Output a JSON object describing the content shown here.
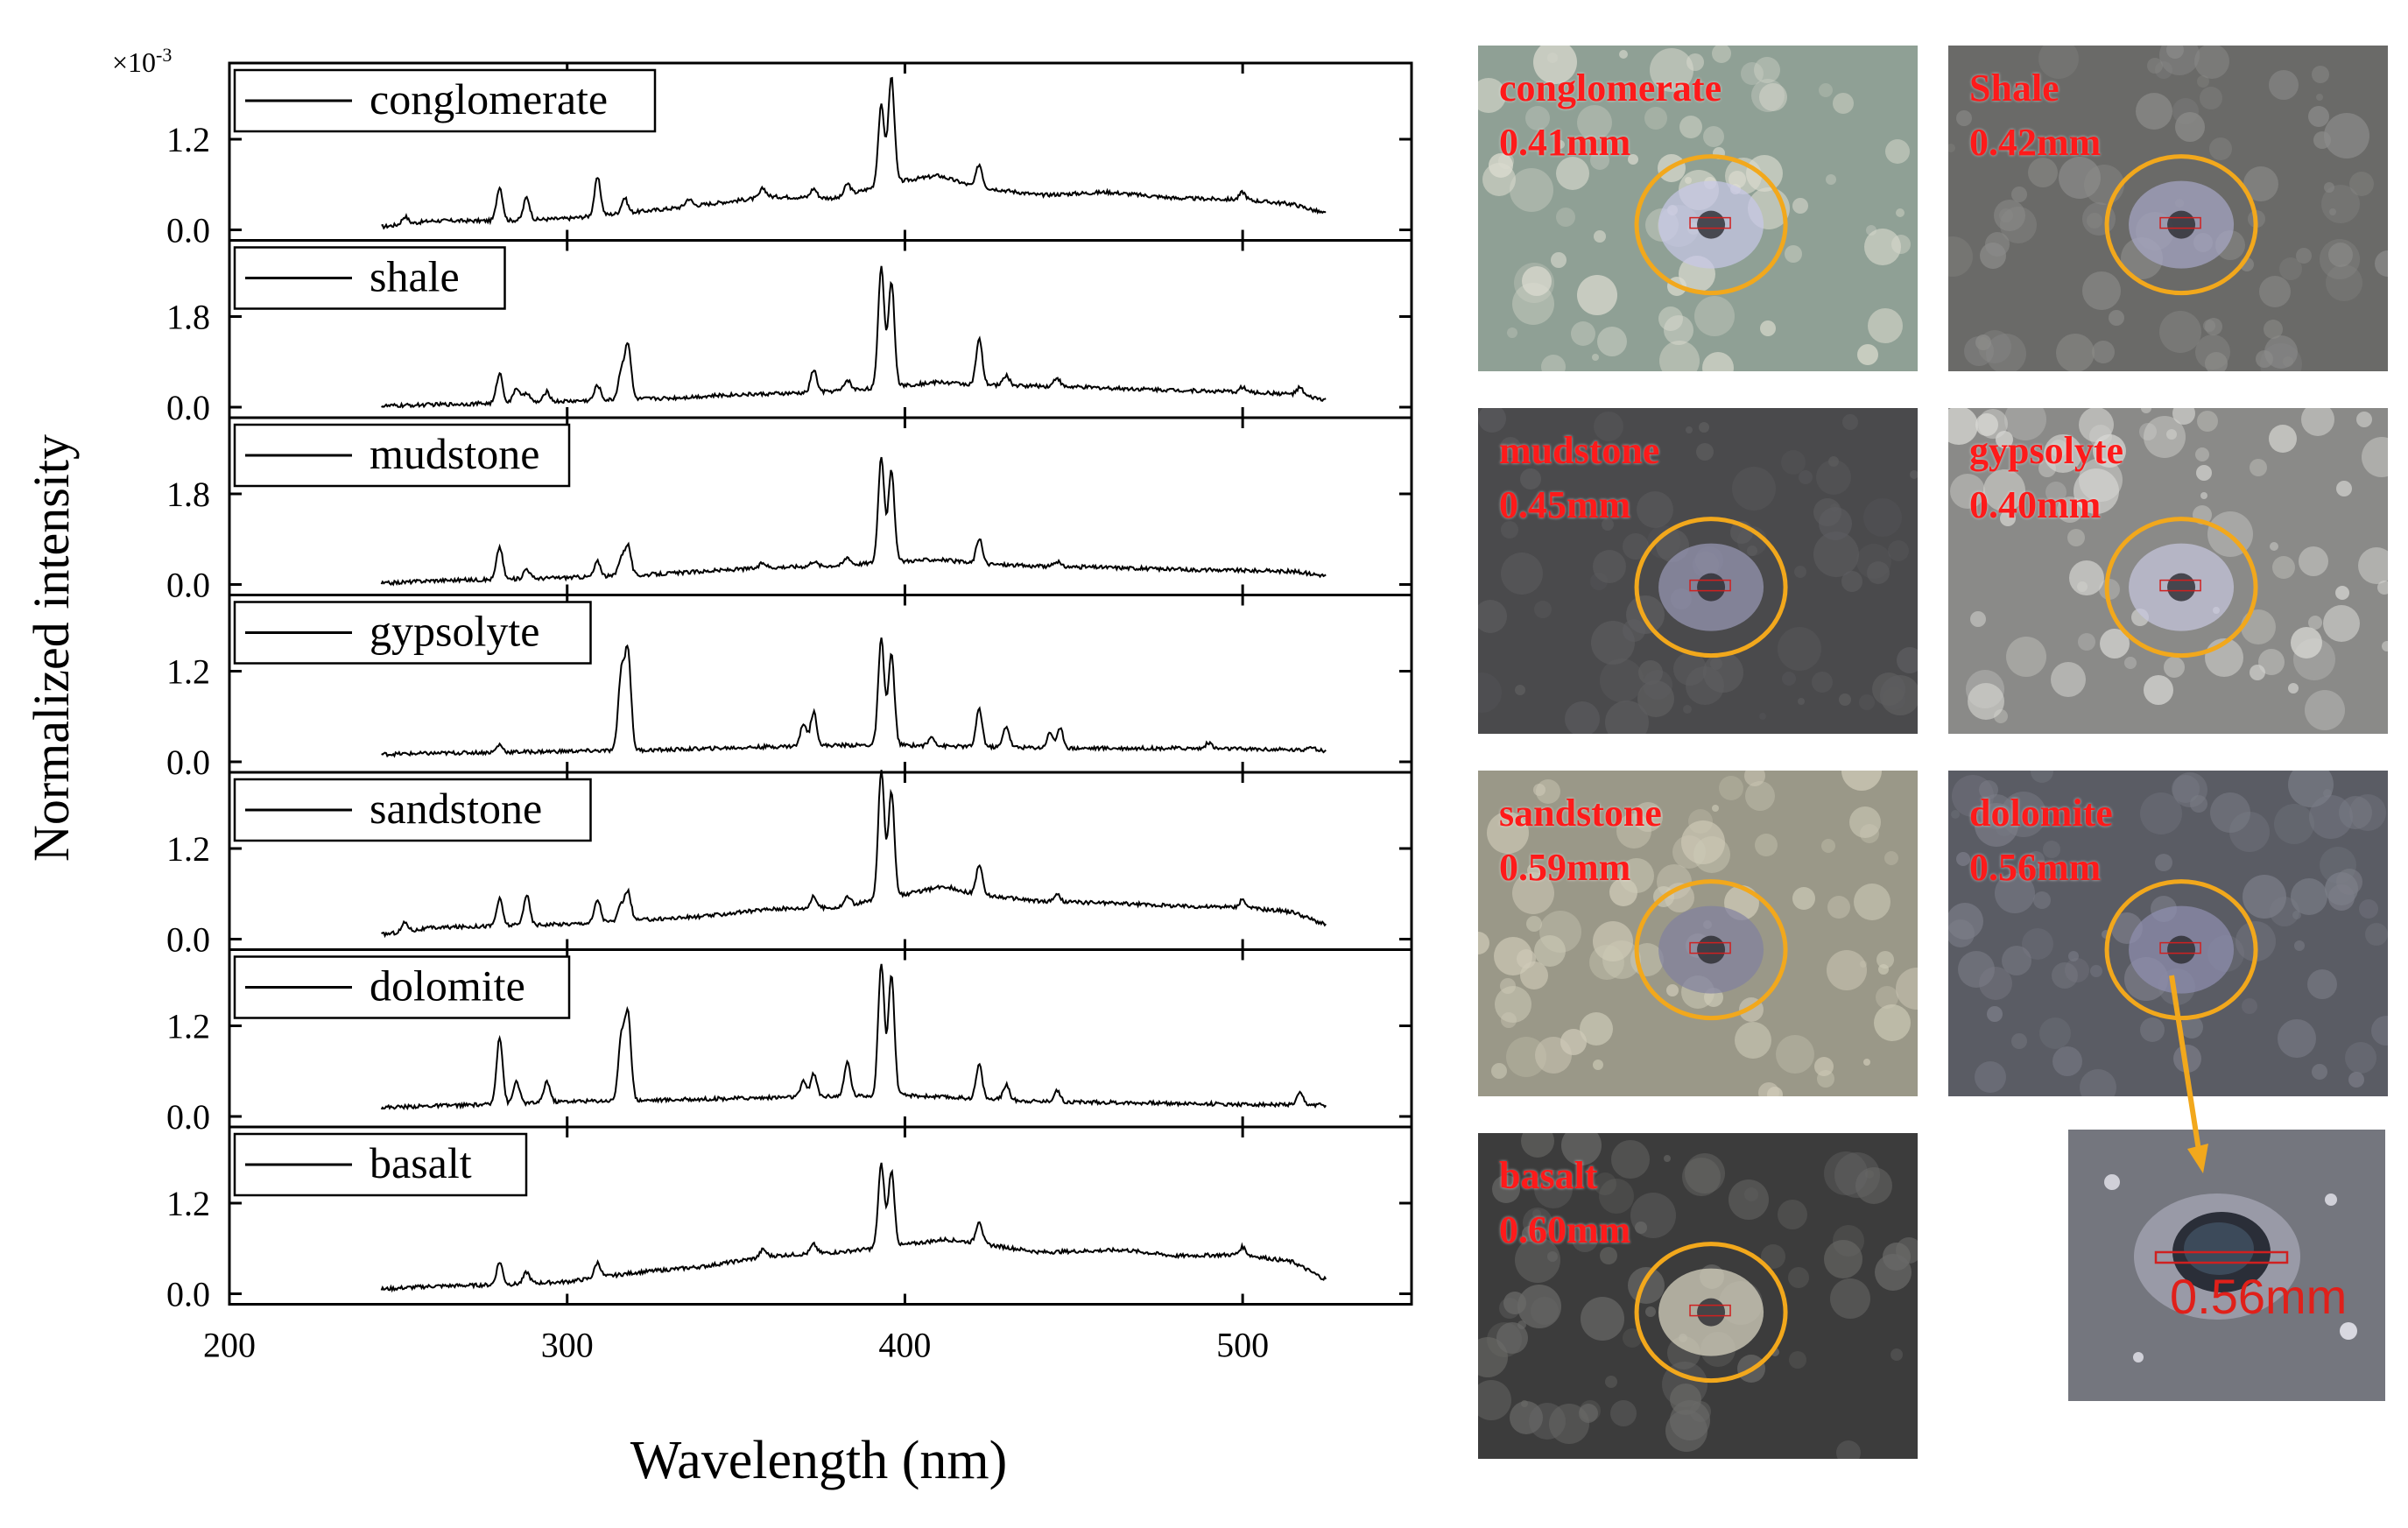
{
  "chart_data": {
    "type": "line",
    "xlabel": "Wavelength (nm)",
    "ylabel": "Normalized intensity",
    "multiplier": "×10",
    "multiplier_exp": "-3",
    "xlim": [
      200,
      550
    ],
    "xticks": [
      "200",
      "300",
      "400",
      "500"
    ],
    "xtick_values": [
      200,
      300,
      400,
      500
    ],
    "x_range": [
      245,
      525
    ],
    "series": [
      {
        "name": "conglomerate",
        "ylim": [
          0,
          2.0
        ],
        "yticks": [
          "0.0",
          "1.2"
        ],
        "ytick_values": [
          0,
          1.2
        ],
        "baseline": [
          [
            245,
            0.04
          ],
          [
            260,
            0.12
          ],
          [
            280,
            0.12
          ],
          [
            300,
            0.15
          ],
          [
            330,
            0.28
          ],
          [
            360,
            0.44
          ],
          [
            380,
            0.42
          ],
          [
            395,
            0.62
          ],
          [
            410,
            0.72
          ],
          [
            420,
            0.58
          ],
          [
            440,
            0.46
          ],
          [
            460,
            0.5
          ],
          [
            480,
            0.42
          ],
          [
            500,
            0.4
          ],
          [
            515,
            0.34
          ],
          [
            524,
            0.22
          ]
        ],
        "peaks": [
          [
            252,
            0.1
          ],
          [
            280,
            0.45
          ],
          [
            288,
            0.3
          ],
          [
            309,
            0.5
          ],
          [
            317,
            0.2
          ],
          [
            336,
            0.1
          ],
          [
            358,
            0.12
          ],
          [
            373,
            0.12
          ],
          [
            383,
            0.15
          ],
          [
            393,
            1.05
          ],
          [
            396,
            1.4
          ],
          [
            422,
            0.3
          ],
          [
            500,
            0.1
          ]
        ]
      },
      {
        "name": "shale",
        "ylim": [
          0,
          3.0
        ],
        "yticks": [
          "0.0",
          "1.8"
        ],
        "ytick_values": [
          0,
          1.8
        ],
        "baseline": [
          [
            245,
            0.02
          ],
          [
            260,
            0.05
          ],
          [
            280,
            0.08
          ],
          [
            300,
            0.12
          ],
          [
            315,
            0.15
          ],
          [
            330,
            0.18
          ],
          [
            350,
            0.25
          ],
          [
            370,
            0.28
          ],
          [
            385,
            0.35
          ],
          [
            395,
            0.4
          ],
          [
            410,
            0.5
          ],
          [
            420,
            0.45
          ],
          [
            440,
            0.42
          ],
          [
            460,
            0.38
          ],
          [
            480,
            0.34
          ],
          [
            500,
            0.3
          ],
          [
            515,
            0.26
          ],
          [
            524,
            0.15
          ]
        ],
        "peaks": [
          [
            280,
            0.6
          ],
          [
            285,
            0.3
          ],
          [
            288,
            0.2
          ],
          [
            294,
            0.2
          ],
          [
            309,
            0.3
          ],
          [
            316,
            0.55
          ],
          [
            318,
            1.1
          ],
          [
            373,
            0.45
          ],
          [
            383,
            0.2
          ],
          [
            393,
            2.4
          ],
          [
            396,
            2.1
          ],
          [
            422,
            0.9
          ],
          [
            430,
            0.2
          ],
          [
            445,
            0.18
          ],
          [
            500,
            0.1
          ],
          [
            517,
            0.15
          ]
        ]
      },
      {
        "name": "mudstone",
        "ylim": [
          0,
          3.0
        ],
        "yticks": [
          "0.0",
          "1.8"
        ],
        "ytick_values": [
          0,
          1.8
        ],
        "baseline": [
          [
            245,
            0.02
          ],
          [
            260,
            0.08
          ],
          [
            280,
            0.1
          ],
          [
            300,
            0.14
          ],
          [
            320,
            0.18
          ],
          [
            340,
            0.26
          ],
          [
            360,
            0.34
          ],
          [
            380,
            0.38
          ],
          [
            395,
            0.45
          ],
          [
            410,
            0.5
          ],
          [
            420,
            0.42
          ],
          [
            440,
            0.36
          ],
          [
            460,
            0.34
          ],
          [
            480,
            0.3
          ],
          [
            500,
            0.28
          ],
          [
            515,
            0.26
          ],
          [
            524,
            0.18
          ]
        ],
        "peaks": [
          [
            280,
            0.65
          ],
          [
            288,
            0.2
          ],
          [
            309,
            0.3
          ],
          [
            316,
            0.35
          ],
          [
            318,
            0.6
          ],
          [
            358,
            0.1
          ],
          [
            373,
            0.1
          ],
          [
            383,
            0.15
          ],
          [
            393,
            2.1
          ],
          [
            396,
            1.8
          ],
          [
            422,
            0.5
          ],
          [
            445,
            0.1
          ]
        ]
      },
      {
        "name": "gypsolyte",
        "ylim": [
          0,
          2.0
        ],
        "yticks": [
          "0.0",
          "1.2"
        ],
        "ytick_values": [
          0,
          1.2
        ],
        "baseline": [
          [
            245,
            0.1
          ],
          [
            270,
            0.12
          ],
          [
            300,
            0.14
          ],
          [
            330,
            0.16
          ],
          [
            360,
            0.2
          ],
          [
            380,
            0.22
          ],
          [
            400,
            0.22
          ],
          [
            420,
            0.2
          ],
          [
            450,
            0.18
          ],
          [
            480,
            0.18
          ],
          [
            500,
            0.17
          ],
          [
            524,
            0.15
          ]
        ],
        "peaks": [
          [
            280,
            0.1
          ],
          [
            316,
            1.0
          ],
          [
            318,
            1.3
          ],
          [
            370,
            0.3
          ],
          [
            373,
            0.45
          ],
          [
            393,
            1.4
          ],
          [
            396,
            1.2
          ],
          [
            408,
            0.12
          ],
          [
            422,
            0.5
          ],
          [
            430,
            0.28
          ],
          [
            443,
            0.2
          ],
          [
            446,
            0.25
          ],
          [
            490,
            0.08
          ],
          [
            520,
            0.06
          ]
        ]
      },
      {
        "name": "sandstone",
        "ylim": [
          0,
          2.0
        ],
        "yticks": [
          "0.0",
          "1.2"
        ],
        "ytick_values": [
          0,
          1.2
        ],
        "baseline": [
          [
            245,
            0.06
          ],
          [
            260,
            0.15
          ],
          [
            280,
            0.18
          ],
          [
            300,
            0.2
          ],
          [
            320,
            0.25
          ],
          [
            340,
            0.3
          ],
          [
            360,
            0.4
          ],
          [
            380,
            0.42
          ],
          [
            395,
            0.55
          ],
          [
            412,
            0.7
          ],
          [
            420,
            0.6
          ],
          [
            440,
            0.5
          ],
          [
            460,
            0.48
          ],
          [
            480,
            0.44
          ],
          [
            500,
            0.42
          ],
          [
            515,
            0.36
          ],
          [
            524,
            0.2
          ]
        ],
        "peaks": [
          [
            252,
            0.12
          ],
          [
            280,
            0.35
          ],
          [
            288,
            0.4
          ],
          [
            309,
            0.3
          ],
          [
            316,
            0.2
          ],
          [
            318,
            0.38
          ],
          [
            373,
            0.15
          ],
          [
            383,
            0.12
          ],
          [
            393,
            1.7
          ],
          [
            396,
            1.4
          ],
          [
            422,
            0.4
          ],
          [
            445,
            0.1
          ],
          [
            500,
            0.1
          ]
        ]
      },
      {
        "name": "dolomite",
        "ylim": [
          0,
          2.0
        ],
        "yticks": [
          "0.0",
          "1.2"
        ],
        "ytick_values": [
          0,
          1.2
        ],
        "baseline": [
          [
            245,
            0.12
          ],
          [
            260,
            0.14
          ],
          [
            280,
            0.16
          ],
          [
            300,
            0.2
          ],
          [
            330,
            0.22
          ],
          [
            360,
            0.25
          ],
          [
            380,
            0.27
          ],
          [
            400,
            0.28
          ],
          [
            420,
            0.24
          ],
          [
            440,
            0.2
          ],
          [
            470,
            0.18
          ],
          [
            500,
            0.16
          ],
          [
            524,
            0.15
          ]
        ],
        "peaks": [
          [
            280,
            0.9
          ],
          [
            285,
            0.3
          ],
          [
            294,
            0.28
          ],
          [
            316,
            0.8
          ],
          [
            318,
            1.15
          ],
          [
            370,
            0.2
          ],
          [
            373,
            0.3
          ],
          [
            383,
            0.45
          ],
          [
            393,
            1.75
          ],
          [
            396,
            1.6
          ],
          [
            422,
            0.45
          ],
          [
            430,
            0.2
          ],
          [
            445,
            0.15
          ],
          [
            517,
            0.15
          ]
        ]
      },
      {
        "name": "basalt",
        "ylim": [
          0,
          2.0
        ],
        "yticks": [
          "0.0",
          "1.2"
        ],
        "ytick_values": [
          0,
          1.2
        ],
        "baseline": [
          [
            245,
            0.06
          ],
          [
            260,
            0.1
          ],
          [
            280,
            0.12
          ],
          [
            300,
            0.16
          ],
          [
            320,
            0.28
          ],
          [
            340,
            0.36
          ],
          [
            360,
            0.5
          ],
          [
            380,
            0.55
          ],
          [
            395,
            0.62
          ],
          [
            412,
            0.72
          ],
          [
            420,
            0.68
          ],
          [
            440,
            0.55
          ],
          [
            465,
            0.58
          ],
          [
            480,
            0.5
          ],
          [
            500,
            0.52
          ],
          [
            515,
            0.42
          ],
          [
            524,
            0.2
          ]
        ],
        "peaks": [
          [
            280,
            0.3
          ],
          [
            288,
            0.15
          ],
          [
            309,
            0.2
          ],
          [
            358,
            0.1
          ],
          [
            373,
            0.12
          ],
          [
            393,
            1.1
          ],
          [
            396,
            1.0
          ],
          [
            422,
            0.3
          ],
          [
            500,
            0.1
          ]
        ]
      }
    ]
  },
  "photos": [
    {
      "name": "conglomerate",
      "line1": "conglomerate",
      "line2": "0.41mm",
      "bg": "#8fa095",
      "spot": "#c8c8e8",
      "tex": "#dcdcd0"
    },
    {
      "name": "shale",
      "line1": "Shale",
      "line2": "0.42mm",
      "bg": "#6a6a68",
      "spot": "#a8a8c8",
      "tex": "#8c8c8a"
    },
    {
      "name": "mudstone",
      "line1": "mudstone",
      "line2": "0.45mm",
      "bg": "#4a4a4c",
      "spot": "#9a9ab8",
      "tex": "#5e5e60"
    },
    {
      "name": "gypsolyte",
      "line1": "gypsolyte",
      "line2": "0.40mm",
      "bg": "#8a8a88",
      "spot": "#c8c8e0",
      "tex": "#d8d8d4"
    },
    {
      "name": "sandstone",
      "line1": "sandstone",
      "line2": "0.59mm",
      "bg": "#9a9888",
      "spot": "#8080a0",
      "tex": "#cfcbb8"
    },
    {
      "name": "dolomite",
      "line1": "dolomite",
      "line2": "0.56mm",
      "bg": "#5a5c64",
      "spot": "#9090b0",
      "tex": "#7c7e88"
    },
    {
      "name": "basalt",
      "line1": "basalt",
      "line2": "0.60mm",
      "bg": "#3c3c3c",
      "spot": "#e0dcc8",
      "tex": "#6a6a68"
    }
  ],
  "zoom": {
    "label": "0.56mm",
    "bg": "#74767e"
  },
  "colors": {
    "circle": "#f2a81c",
    "arrow": "#f2a81c",
    "label": "#ff1a1a",
    "scale": "#d02020"
  }
}
